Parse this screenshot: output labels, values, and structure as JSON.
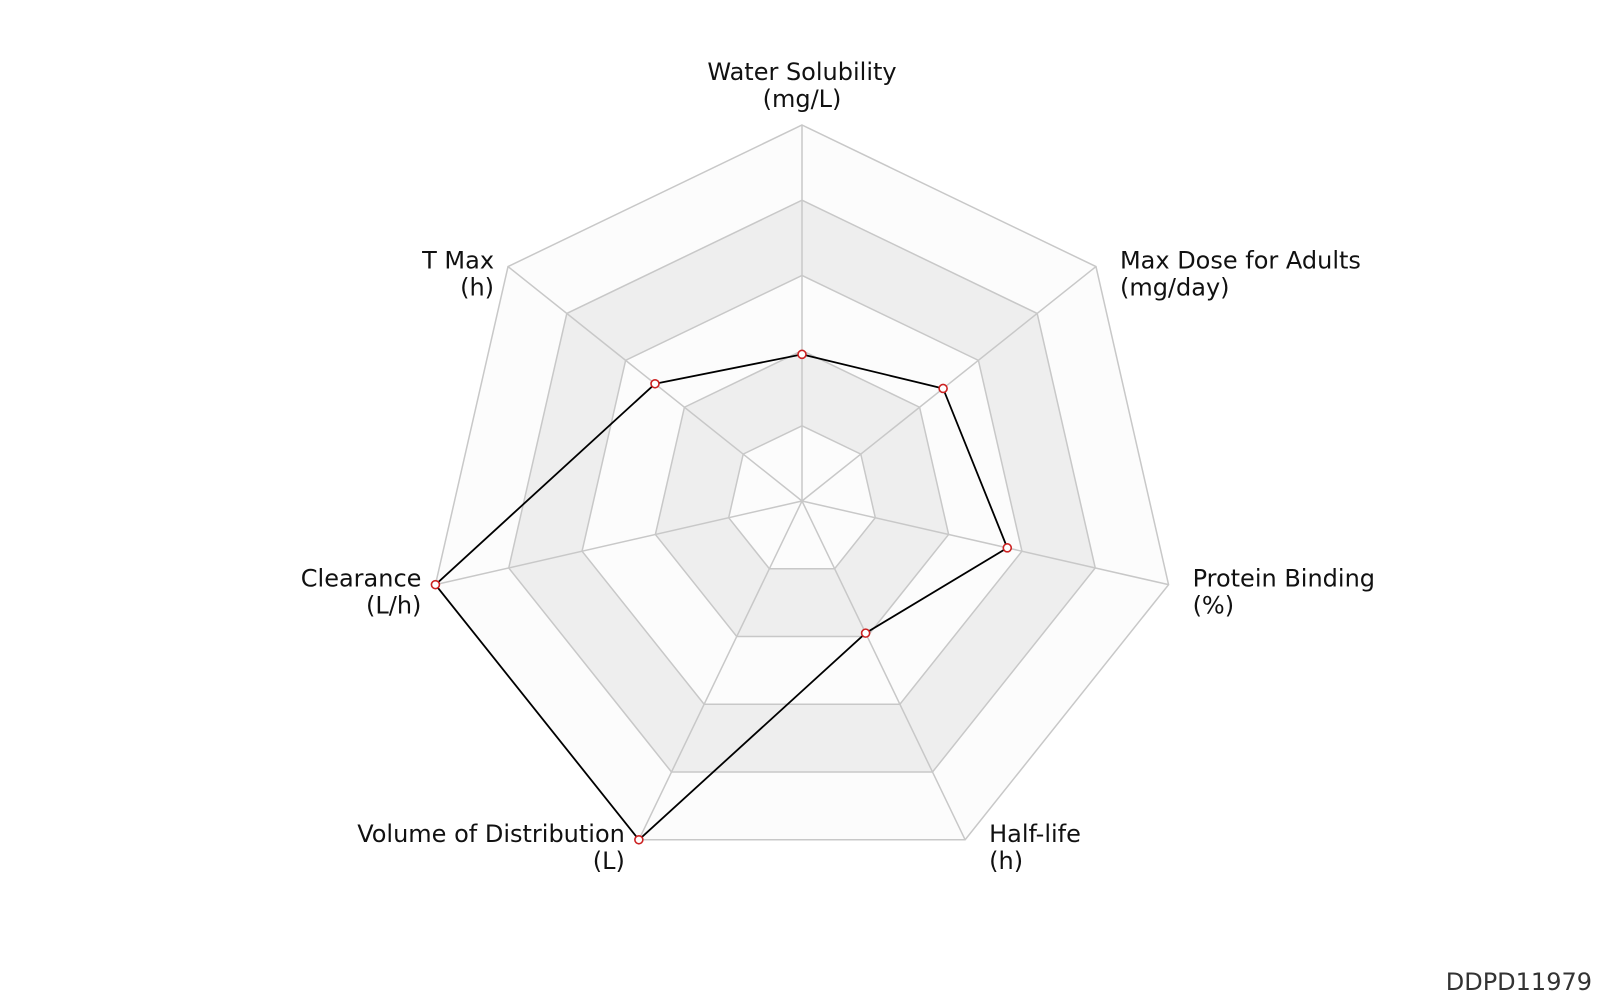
{
  "chart_data": {
    "type": "radar",
    "axes": [
      {
        "name": "Water Solubility",
        "unit": "(mg/L)"
      },
      {
        "name": "Max Dose for Adults",
        "unit": "(mg/day)"
      },
      {
        "name": "Protein Binding",
        "unit": "(%)"
      },
      {
        "name": "Half-life",
        "unit": "(h)"
      },
      {
        "name": "Volume of Distribution",
        "unit": "(L)"
      },
      {
        "name": "Clearance",
        "unit": "(L/h)"
      },
      {
        "name": "T Max",
        "unit": "(h)"
      }
    ],
    "series": [
      {
        "values": [
          0.39,
          0.48,
          0.56,
          0.39,
          1.0,
          1.0,
          0.5
        ]
      }
    ],
    "rings": 5,
    "range": [
      0,
      1
    ],
    "grid": true,
    "legend": "none",
    "colors": {
      "band_alt": "#eeeeee",
      "band_base": "#fcfcfc",
      "grid_line": "#c8c8c8",
      "series_line": "#000000",
      "marker_edge": "#cc2222",
      "marker_fill": "#ffffff"
    }
  },
  "footer": {
    "id": "DDPD11979"
  }
}
